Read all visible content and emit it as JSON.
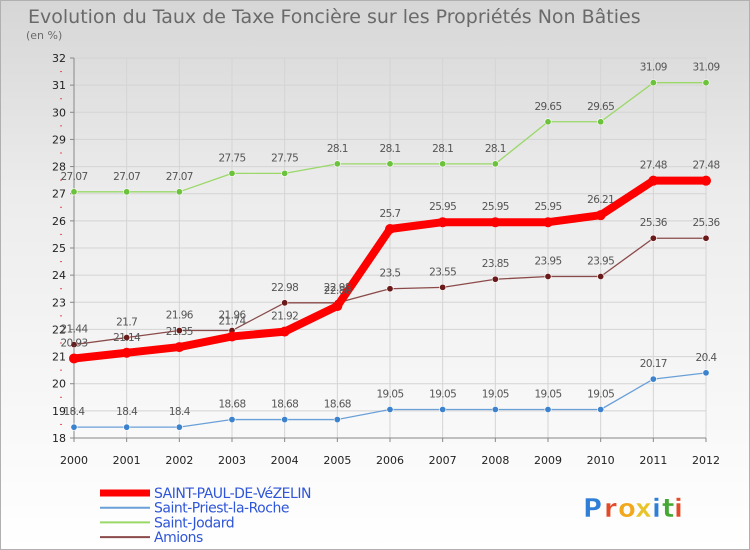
{
  "title": "Evolution du Taux de Taxe Foncière sur les Propriétés Non Bâties",
  "subtitle": "(en %)",
  "brand": {
    "letters": [
      "P",
      "r",
      "o",
      "x",
      "i",
      "t",
      "i"
    ],
    "colors": [
      "#2f7fd6",
      "#e24b2a",
      "#f2a81d",
      "#e8c32a",
      "#2f7fd6",
      "#45a832",
      "#e24b2a"
    ]
  },
  "chart_data": {
    "type": "line",
    "title": "Evolution du Taux de Taxe Foncière sur les Propriétés Non Bâties",
    "ylabel": "(en %)",
    "xlabel": "",
    "x": [
      "2000",
      "2001",
      "2002",
      "2003",
      "2004",
      "2005",
      "2006",
      "2007",
      "2008",
      "2009",
      "2010",
      "2011",
      "2012"
    ],
    "ylim": [
      18,
      32
    ],
    "yticks": [
      18,
      19,
      20,
      21,
      22,
      23,
      24,
      25,
      26,
      27,
      28,
      29,
      30,
      31,
      32
    ],
    "grid": true,
    "legend_position": "bottom-left",
    "series": [
      {
        "name": "SAINT-PAUL-DE-VéZELIN",
        "color": "#ff0000",
        "width": 8,
        "dot": "#ff0000",
        "values": [
          20.93,
          21.14,
          21.35,
          21.74,
          21.92,
          22.86,
          25.7,
          25.95,
          25.95,
          25.95,
          26.21,
          27.48,
          27.48
        ],
        "labels": [
          "20.93",
          "21.14",
          "21.35",
          "21.74",
          "21.92",
          "22.86",
          "25.7",
          "25.95",
          "25.95",
          "25.95",
          "26.21",
          "27.48",
          "27.48"
        ]
      },
      {
        "name": "Saint-Priest-la-Roche",
        "color": "#6aa0d8",
        "width": 1.3,
        "dot": "#3d82cc",
        "values": [
          18.4,
          18.4,
          18.4,
          18.68,
          18.68,
          18.68,
          19.05,
          19.05,
          19.05,
          19.05,
          19.05,
          20.17,
          20.4
        ],
        "labels": [
          "18.4",
          "18.4",
          "18.4",
          "18.68",
          "18.68",
          "18.68",
          "19.05",
          "19.05",
          "19.05",
          "19.05",
          "19.05",
          "20.17",
          "20.4"
        ]
      },
      {
        "name": "Saint-Jodard",
        "color": "#9ad868",
        "width": 1.3,
        "dot": "#6cc23c",
        "values": [
          27.07,
          27.07,
          27.07,
          27.75,
          27.75,
          28.1,
          28.1,
          28.1,
          28.1,
          29.65,
          29.65,
          31.09,
          31.09
        ],
        "labels": [
          "27.07",
          "27.07",
          "27.07",
          "27.75",
          "27.75",
          "28.1",
          "28.1",
          "28.1",
          "28.1",
          "29.65",
          "29.65",
          "31.09",
          "31.09"
        ]
      },
      {
        "name": "Amions",
        "color": "#8b4a4a",
        "width": 1.3,
        "dot": "#6b1a1a",
        "values": [
          21.44,
          21.7,
          21.96,
          21.96,
          22.98,
          22.98,
          23.5,
          23.55,
          23.85,
          23.95,
          23.95,
          25.36,
          25.36
        ],
        "labels": [
          "21.44",
          "21.7",
          "21.96",
          "21.96",
          "22.98",
          "22.98",
          "23.5",
          "23.55",
          "23.85",
          "23.95",
          "23.95",
          "25.36",
          "25.36"
        ]
      }
    ]
  }
}
